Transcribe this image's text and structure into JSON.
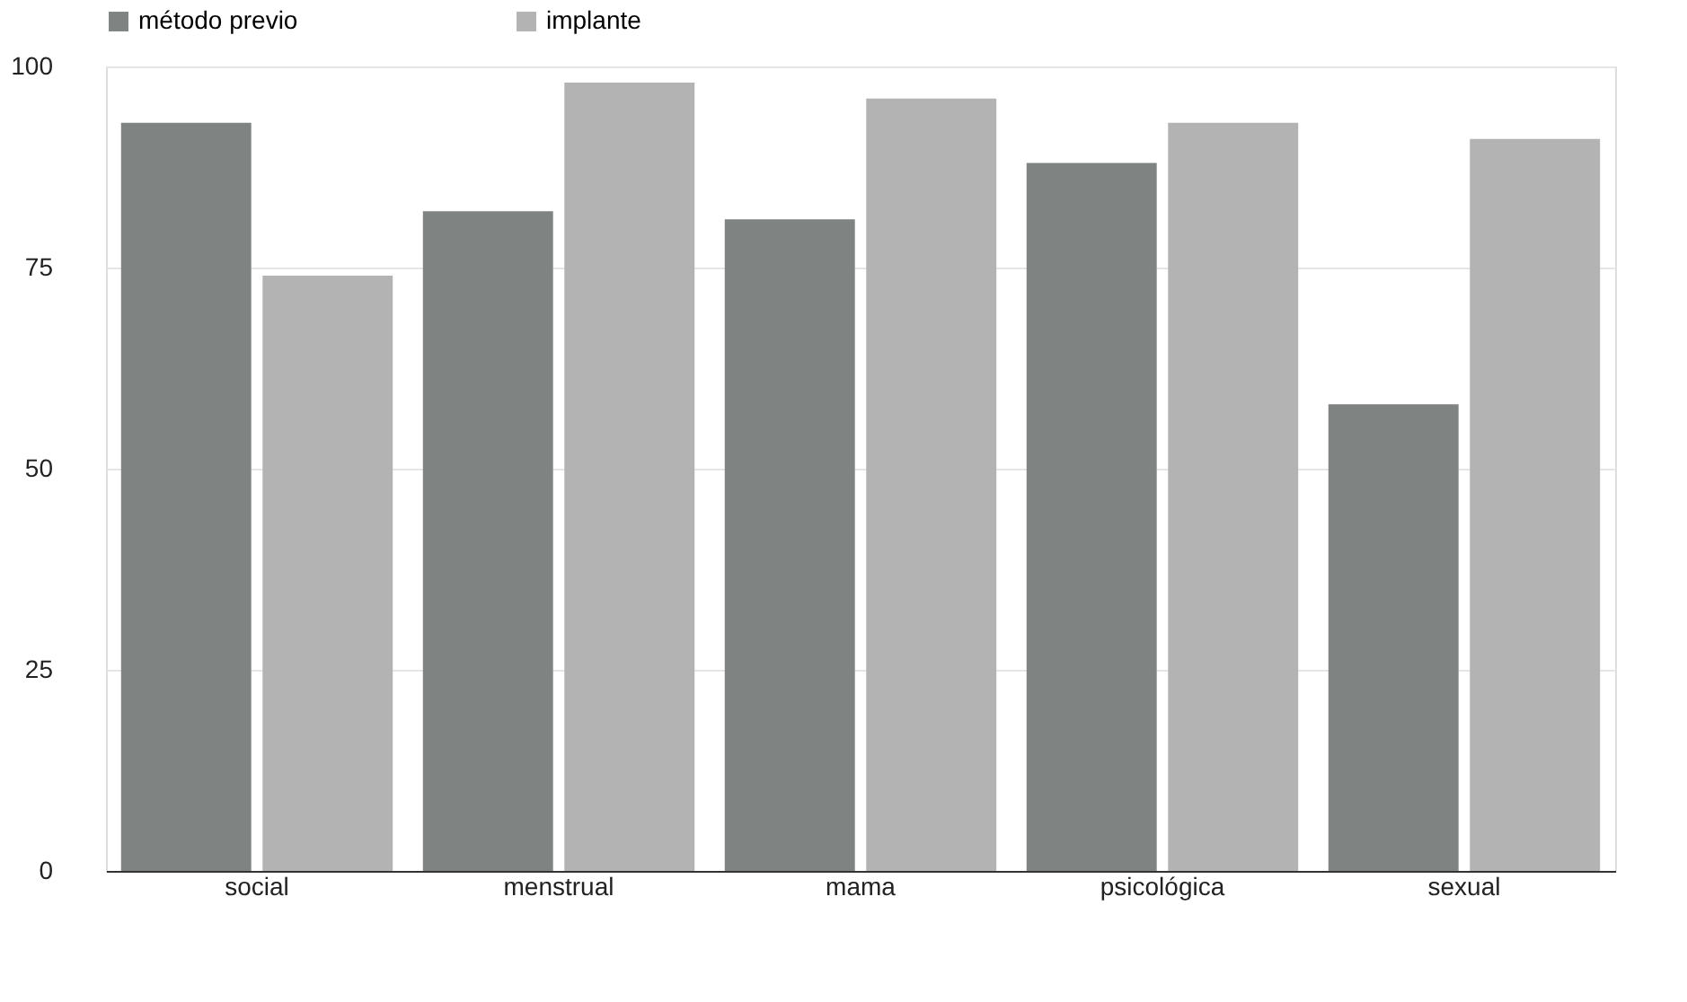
{
  "chart_data": {
    "type": "bar",
    "categories": [
      "social",
      "menstrual",
      "mama",
      "psicológica",
      "sexual"
    ],
    "series": [
      {
        "name": "método previo",
        "color": "#7f8482",
        "values": [
          93,
          82,
          81,
          88,
          58
        ]
      },
      {
        "name": "implante",
        "color": "#b3b3b3",
        "values": [
          74,
          98,
          96,
          93,
          91
        ]
      }
    ],
    "ylim": [
      0,
      100
    ],
    "yticks": [
      0,
      25,
      50,
      75,
      100
    ],
    "grid": "y",
    "legend": "top"
  }
}
